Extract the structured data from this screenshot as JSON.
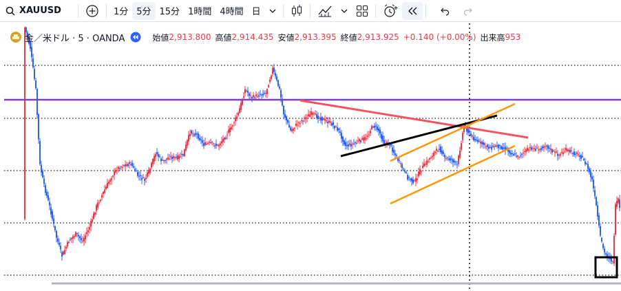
{
  "toolbar": {
    "symbol": "XAUUSD",
    "intervals": [
      "1分",
      "5分",
      "15分",
      "1時間",
      "4時間",
      "日"
    ],
    "active_interval": "5分"
  },
  "legend": {
    "instrument": "金／米ドル · 5 · OANDA",
    "open_label": "始値",
    "open": "2,913.800",
    "high_label": "高値",
    "high": "2,914.435",
    "low_label": "安値",
    "low": "2,913.395",
    "close_label": "終値",
    "close": "2,913.925",
    "change": "+0.140 (+0.00%)",
    "volume_label": "出来高",
    "volume": "953"
  },
  "colors": {
    "up": "#f23645",
    "down": "#2962ff",
    "horizontal_line": "#7e3fbf",
    "trend_red": "#f7525f",
    "trend_black": "#000000",
    "channel_orange": "#ff9800"
  },
  "icons": [
    "search-icon",
    "add-symbol-icon",
    "chevron-down-icon",
    "candles-icon",
    "indicators-icon",
    "layout-icon",
    "alert-icon",
    "replay-icon",
    "undo-icon",
    "redo-icon"
  ]
}
